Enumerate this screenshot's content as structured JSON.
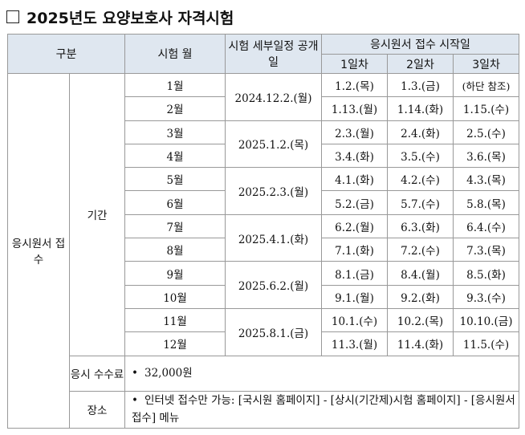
{
  "title": "2025년도 요양보호사 자격시험",
  "header": {
    "category": "구분",
    "exam_month": "시험 월",
    "detail_schedule": "시험 세부일정 공개일",
    "receipt_start": "응시원서 접수 시작일",
    "day1": "1일차",
    "day2": "2일차",
    "day3": "3일차"
  },
  "section_label": "응시원서 접수",
  "period_label": "기간",
  "rows": [
    {
      "month": "1월",
      "publish": "2024.12.2.(월)",
      "d1": "1.2.(목)",
      "d2": "1.3.(금)",
      "d3": "(하단 참조)"
    },
    {
      "month": "2월",
      "publish": "",
      "d1": "1.13.(월)",
      "d2": "1.14.(화)",
      "d3": "1.15.(수)"
    },
    {
      "month": "3월",
      "publish": "2025.1.2.(목)",
      "d1": "2.3.(월)",
      "d2": "2.4.(화)",
      "d3": "2.5.(수)"
    },
    {
      "month": "4월",
      "publish": "",
      "d1": "3.4.(화)",
      "d2": "3.5.(수)",
      "d3": "3.6.(목)"
    },
    {
      "month": "5월",
      "publish": "2025.2.3.(월)",
      "d1": "4.1.(화)",
      "d2": "4.2.(수)",
      "d3": "4.3.(목)"
    },
    {
      "month": "6월",
      "publish": "",
      "d1": "5.2.(금)",
      "d2": "5.7.(수)",
      "d3": "5.8.(목)"
    },
    {
      "month": "7월",
      "publish": "2025.4.1.(화)",
      "d1": "6.2.(월)",
      "d2": "6.3.(화)",
      "d3": "6.4.(수)"
    },
    {
      "month": "8월",
      "publish": "",
      "d1": "7.1.(화)",
      "d2": "7.2.(수)",
      "d3": "7.3.(목)"
    },
    {
      "month": "9월",
      "publish": "2025.6.2.(월)",
      "d1": "8.1.(금)",
      "d2": "8.4.(월)",
      "d3": "8.5.(화)"
    },
    {
      "month": "10월",
      "publish": "",
      "d1": "9.1.(월)",
      "d2": "9.2.(화)",
      "d3": "9.3.(수)"
    },
    {
      "month": "11월",
      "publish": "2025.8.1.(금)",
      "d1": "10.1.(수)",
      "d2": "10.2.(목)",
      "d3": "10.10.(금)"
    },
    {
      "month": "12월",
      "publish": "",
      "d1": "11.3.(월)",
      "d2": "11.4.(화)",
      "d3": "11.5.(수)"
    }
  ],
  "fee": {
    "label": "응시 수수료",
    "value": "32,000원"
  },
  "place": {
    "label": "장소",
    "value": "인터넷 접수만 가능: [국시원 홈페이지] - [상시(기간제)시험 홈페이지] - [응시원서접수] 메뉴"
  }
}
